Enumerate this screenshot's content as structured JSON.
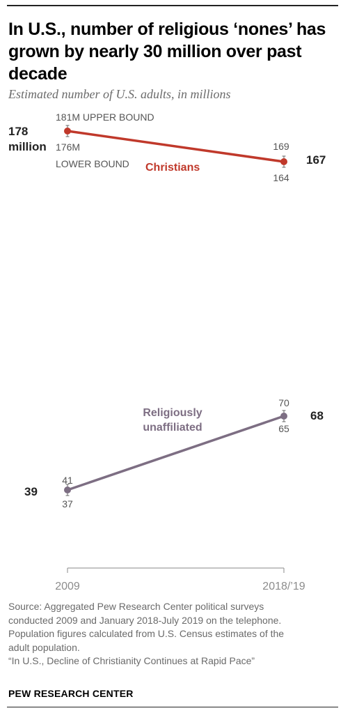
{
  "title": "In U.S., number of religious ‘nones’ has grown by nearly 30 million over past decade",
  "subtitle": "Estimated number of U.S. adults, in millions",
  "chart_data": {
    "type": "line",
    "x": [
      "2009",
      "2018/’19"
    ],
    "series": [
      {
        "name": "Christians",
        "color": "#c0392b",
        "values": [
          178,
          167
        ],
        "upper": [
          181,
          169
        ],
        "lower": [
          176,
          164
        ],
        "value_labels": [
          "178",
          "167"
        ],
        "upper_labels": [
          "181M UPPER BOUND",
          "169"
        ],
        "lower_labels": [
          "176M",
          "164"
        ]
      },
      {
        "name": "Religiously unaffiliated",
        "color": "#7d6e83",
        "values": [
          39,
          68
        ],
        "upper": [
          41,
          70
        ],
        "lower": [
          37,
          65
        ],
        "value_labels": [
          "39",
          "68"
        ],
        "upper_labels": [
          "41",
          "70"
        ],
        "lower_labels": [
          "37",
          "65"
        ]
      }
    ],
    "annotations": {
      "first_value_unit": "million",
      "lower_bound_label": "LOWER BOUND",
      "series_label_lines": [
        [
          "Christians"
        ],
        [
          "Religiously",
          "unaffiliated"
        ]
      ]
    }
  },
  "footer": {
    "source_lines": [
      "Source: Aggregated Pew Research Center political surveys",
      "conducted 2009 and January 2018-July 2019 on the telephone.",
      "Population figures calculated from U.S. Census estimates of the",
      "adult population.",
      "“In U.S., Decline of Christianity Continues at Rapid Pace”"
    ],
    "publisher": "PEW RESEARCH CENTER"
  }
}
